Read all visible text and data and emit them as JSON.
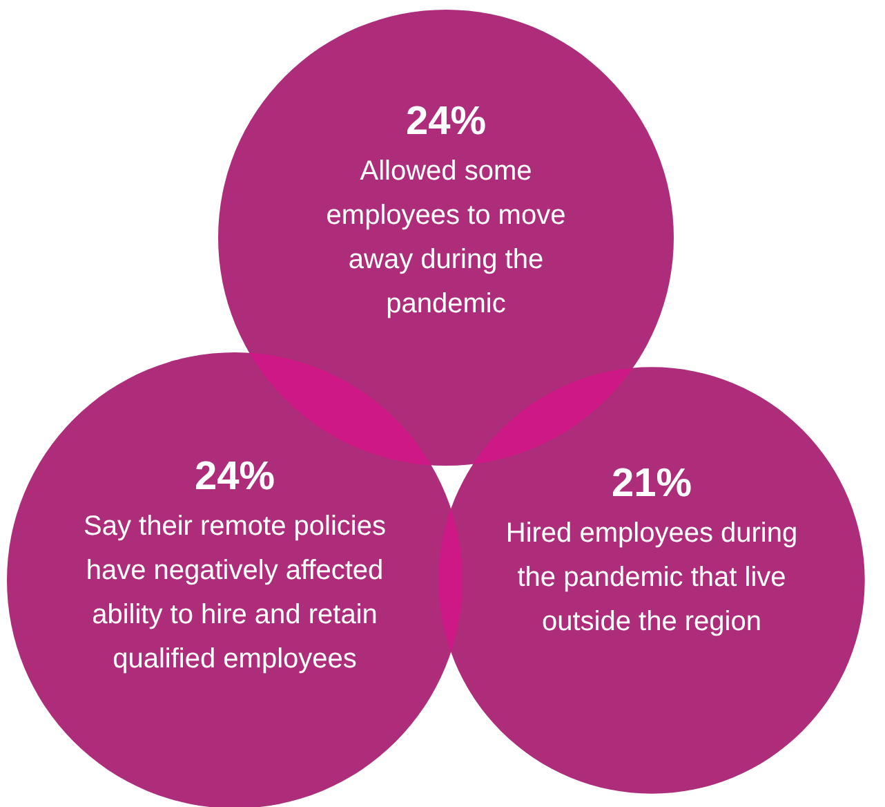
{
  "chart_data": {
    "type": "other",
    "categories": [
      "Allowed some employees to move away during the pandemic",
      "Say their remote policies have negatively affected ability to hire and retain qualified employees",
      "Hired employees during the pandemic that live outside the region"
    ],
    "values": [
      24,
      24,
      21
    ],
    "value_labels": [
      "24%",
      "24%",
      "21%"
    ],
    "colors": [
      "#ae2d7a",
      "#ae2d7a",
      "#ae2d7a"
    ]
  }
}
